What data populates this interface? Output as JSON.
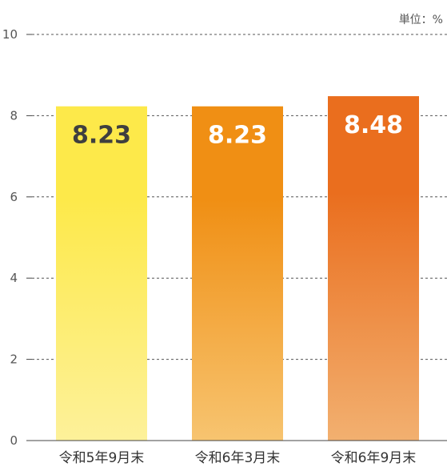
{
  "unit_label": "単位：%",
  "chart_data": {
    "type": "bar",
    "categories": [
      "令和5年9月末",
      "令和6年3月末",
      "令和6年9月末"
    ],
    "values": [
      8.23,
      8.23,
      8.48
    ],
    "value_labels": [
      "8.23",
      "8.23",
      "8.48"
    ],
    "title": "",
    "xlabel": "",
    "ylabel": "",
    "ylim": [
      0,
      10
    ],
    "yticks": [
      0,
      2,
      4,
      6,
      8,
      10
    ],
    "grid": true,
    "bar_colors": [
      {
        "top": "#fde94a",
        "bottom": "#fdf19a",
        "label": "#3f3f3f"
      },
      {
        "top": "#f08f14",
        "bottom": "#f7c470",
        "label": "#ffffff"
      },
      {
        "top": "#ea6e1e",
        "bottom": "#f2b070",
        "label": "#ffffff"
      }
    ]
  }
}
